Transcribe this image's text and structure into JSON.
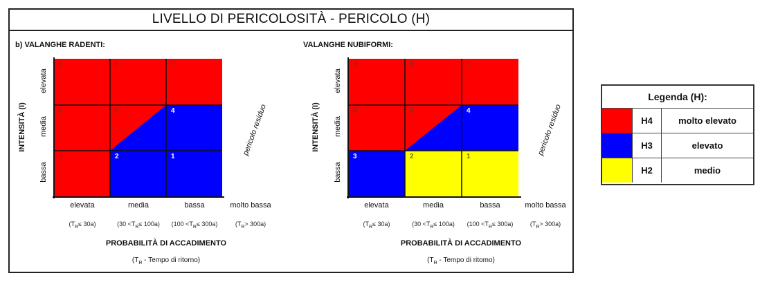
{
  "title": "LIVELLO DI PERICOLOSITÀ - PERICOLO (H)",
  "colors": {
    "H4": "#ff0000",
    "H3": "#0000ff",
    "H2": "#ffff00"
  },
  "left": {
    "title": "b) VALANGHE RADENTI:",
    "y_axis_title": "INTENSITÀ (I)",
    "y_labels": [
      "elevata",
      "media",
      "bassa"
    ],
    "residuo": "pericolo residuo",
    "cells": {
      "c9": "9",
      "c8": "8",
      "c7": "7",
      "c6": "6",
      "c5": "5",
      "c4": "4",
      "c3": "3",
      "c2": "2",
      "c1": "1"
    },
    "columns": [
      "elevata",
      "media",
      "bassa",
      "molto bassa"
    ],
    "col_sub": [
      [
        "(T",
        "R",
        "≤ 30a)"
      ],
      [
        "(30 <T",
        "R",
        "≤ 100a)"
      ],
      [
        "(100 <T",
        "R",
        "≤ 300a)"
      ],
      [
        "(T",
        "R",
        "> 300a)"
      ]
    ],
    "x_title": "PROBABILITÀ DI ACCADIMENTO",
    "x_sub": [
      "(T",
      "R",
      " - Tempo di ritorno)"
    ]
  },
  "right": {
    "title": "VALANGHE NUBIFORMI:",
    "y_axis_title": "INTENSITÀ (I)",
    "y_labels": [
      "elevata",
      "media",
      "bassa"
    ],
    "residuo": "pericolo residuo",
    "cells": {
      "c9": "9",
      "c8": "8",
      "c7": "7",
      "c6": "6",
      "c5": "5",
      "c4": "4",
      "c3": "3",
      "c2": "2",
      "c1": "1"
    },
    "columns": [
      "elevata",
      "media",
      "bassa",
      "molto bassa"
    ],
    "col_sub": [
      [
        "(T",
        "R",
        "≤ 30a)"
      ],
      [
        "(30 <T",
        "R",
        "≤ 100a)"
      ],
      [
        "(100 <T",
        "R",
        "≤ 300a)"
      ],
      [
        "(T",
        "R",
        "> 300a)"
      ]
    ],
    "x_title": "PROBABILITÀ DI ACCADIMENTO",
    "x_sub": [
      "(T",
      "R",
      " - Tempo di ritomo)"
    ]
  },
  "legend": {
    "title": "Legenda (H):",
    "rows": [
      {
        "code": "H4",
        "label": "molto elevato"
      },
      {
        "code": "H3",
        "label": "elevato"
      },
      {
        "code": "H2",
        "label": "medio"
      }
    ]
  }
}
